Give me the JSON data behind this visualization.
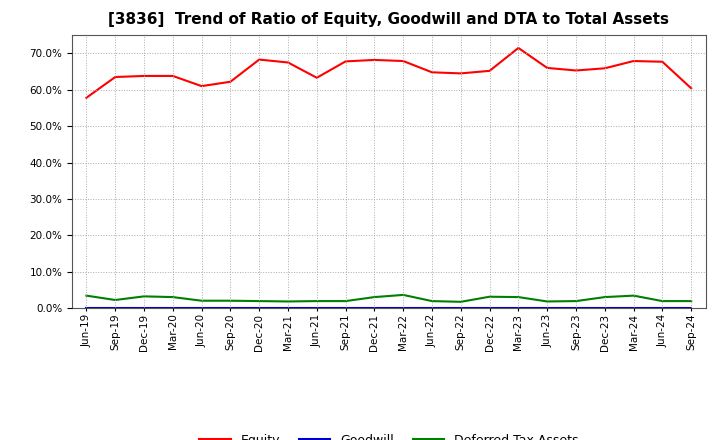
{
  "title": "[3836]  Trend of Ratio of Equity, Goodwill and DTA to Total Assets",
  "labels": [
    "Jun-19",
    "Sep-19",
    "Dec-19",
    "Mar-20",
    "Jun-20",
    "Sep-20",
    "Dec-20",
    "Mar-21",
    "Jun-21",
    "Sep-21",
    "Dec-21",
    "Mar-22",
    "Jun-22",
    "Sep-22",
    "Dec-22",
    "Mar-23",
    "Jun-23",
    "Sep-23",
    "Dec-23",
    "Mar-24",
    "Jun-24",
    "Sep-24"
  ],
  "equity": [
    0.578,
    0.635,
    0.638,
    0.638,
    0.61,
    0.622,
    0.683,
    0.675,
    0.633,
    0.678,
    0.682,
    0.679,
    0.648,
    0.645,
    0.652,
    0.715,
    0.66,
    0.653,
    0.659,
    0.679,
    0.677,
    0.604
  ],
  "goodwill": [
    0.0,
    0.0,
    0.0,
    0.0,
    0.0,
    0.0,
    0.0,
    0.0,
    0.0,
    0.0,
    0.0,
    0.0,
    0.0,
    0.0,
    0.0,
    0.0,
    0.0,
    0.0,
    0.0,
    0.0,
    0.0,
    0.0
  ],
  "dta": [
    0.034,
    0.022,
    0.032,
    0.03,
    0.02,
    0.02,
    0.019,
    0.018,
    0.019,
    0.019,
    0.03,
    0.036,
    0.019,
    0.017,
    0.031,
    0.03,
    0.018,
    0.019,
    0.03,
    0.034,
    0.019,
    0.019
  ],
  "equity_color": "#ff0000",
  "goodwill_color": "#0000cd",
  "dta_color": "#008000",
  "ylim": [
    0.0,
    0.75
  ],
  "yticks": [
    0.0,
    0.1,
    0.2,
    0.3,
    0.4,
    0.5,
    0.6,
    0.7
  ],
  "background_color": "#ffffff",
  "plot_bg_color": "#ffffff",
  "grid_color": "#aaaaaa",
  "title_fontsize": 11,
  "tick_fontsize": 7.5,
  "legend_labels": [
    "Equity",
    "Goodwill",
    "Deferred Tax Assets"
  ]
}
